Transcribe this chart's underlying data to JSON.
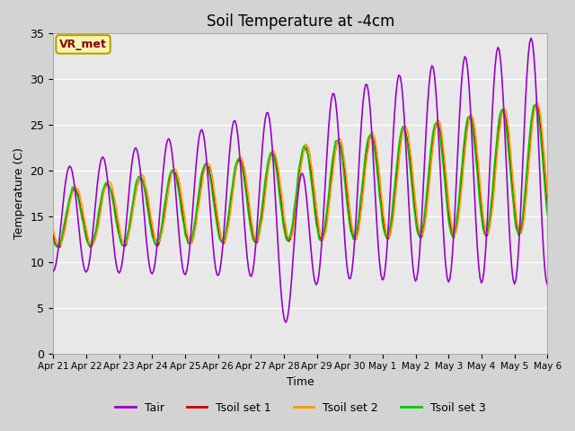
{
  "title": "Soil Temperature at -4cm",
  "xlabel": "Time",
  "ylabel": "Temperature (C)",
  "ylim": [
    0,
    35
  ],
  "yticks": [
    0,
    5,
    10,
    15,
    20,
    25,
    30,
    35
  ],
  "xtick_labels": [
    "Apr 21",
    "Apr 22",
    "Apr 23",
    "Apr 24",
    "Apr 25",
    "Apr 26",
    "Apr 27",
    "Apr 28",
    "Apr 29",
    "Apr 30",
    "May 1",
    "May 2",
    "May 3",
    "May 4",
    "May 5",
    "May 6"
  ],
  "annotation_text": "VR_met",
  "annotation_color": "#8b0000",
  "annotation_bg": "#f5f5b0",
  "annotation_border": "#b8a000",
  "color_tair": "#9900cc",
  "color_tsoil1": "#cc0000",
  "color_tsoil2": "#ff9900",
  "color_tsoil3": "#00cc00",
  "fig_bg_color": "#d3d3d3",
  "plot_bg_color": "#e8e8e8",
  "grid_color": "#ffffff",
  "linewidth": 1.2,
  "days": 15,
  "n_points": 360
}
